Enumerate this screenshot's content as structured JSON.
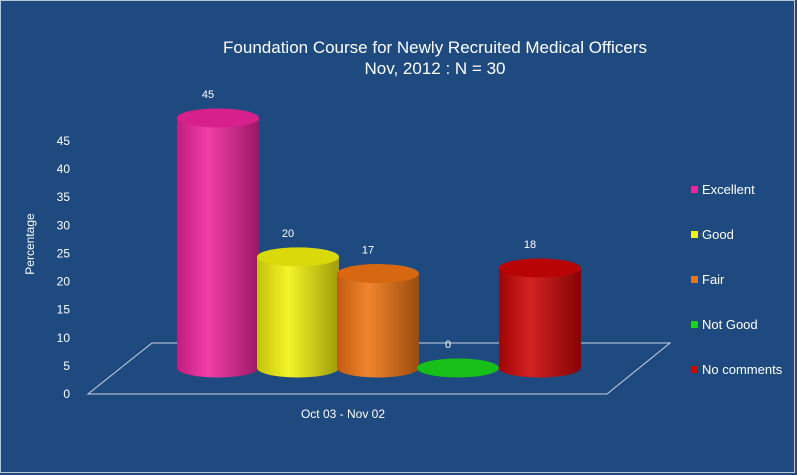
{
  "chart_data": {
    "type": "bar",
    "title": "Foundation Course for Newly Recruited Medical Officers",
    "subtitle": "Nov, 2012 : N = 30",
    "xlabel": "",
    "ylabel": "Percentage",
    "categories": [
      "Oct 03 - Nov 02"
    ],
    "ylim": [
      0,
      45
    ],
    "yticks": [
      0,
      5,
      10,
      15,
      20,
      25,
      30,
      35,
      40,
      45
    ],
    "legend_position": "right",
    "series": [
      {
        "name": "Excellent",
        "values": [
          45
        ],
        "color": "#f0249c",
        "label": "45"
      },
      {
        "name": "Good",
        "values": [
          20
        ],
        "color": "#f2f20c",
        "label": "20"
      },
      {
        "name": "Fair",
        "values": [
          17
        ],
        "color": "#ef7413",
        "label": "17"
      },
      {
        "name": "Not Good",
        "values": [
          0
        ],
        "color": "#19d41c",
        "label": "0"
      },
      {
        "name": "No comments",
        "values": [
          18
        ],
        "color": "#cc0404",
        "label": "18"
      }
    ]
  }
}
